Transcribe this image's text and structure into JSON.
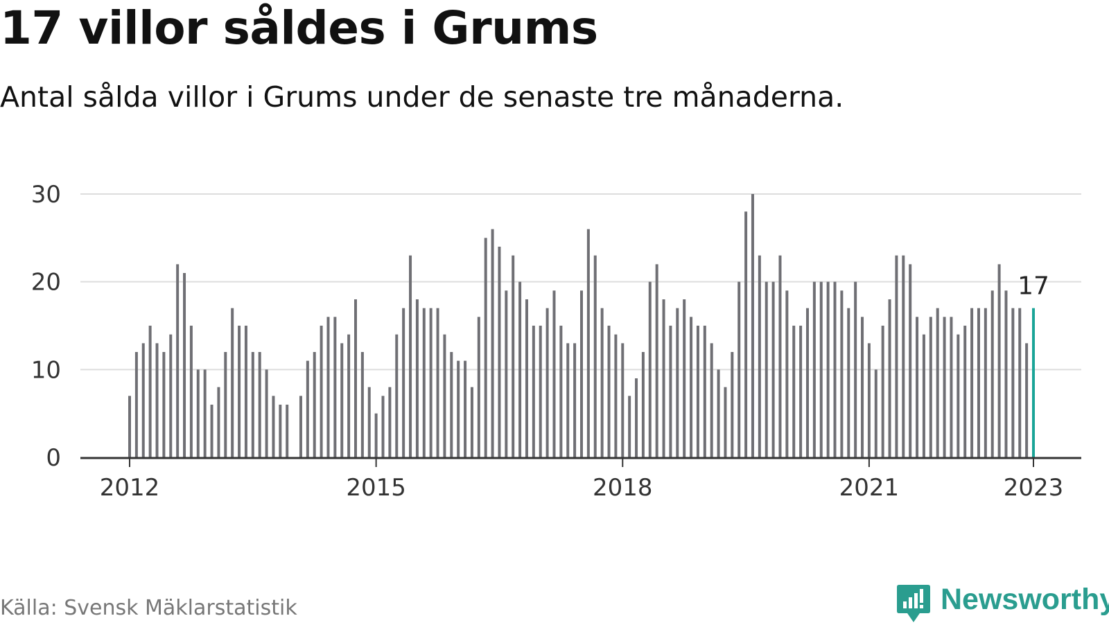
{
  "title": "17 villor såldes i Grums",
  "subtitle": "Antal sålda villor i Grums under de senaste tre månaderna.",
  "source": "Källa: Svensk Mäklarstatistik",
  "brand": {
    "name": "Newsworthy",
    "icon": "newsworthy-logo-icon"
  },
  "colors": {
    "bar": "#6f6f74",
    "highlight": "#1aa497",
    "grid": "#dddddd",
    "axis": "#333333",
    "brand": "#2a9d8f"
  },
  "chart_data": {
    "type": "bar",
    "title": "17 villor såldes i Grums",
    "xlabel": "",
    "ylabel": "",
    "ylim": [
      0,
      30
    ],
    "yticks": [
      0,
      10,
      20,
      30
    ],
    "xticks": [
      "2012",
      "2015",
      "2018",
      "2021",
      "2023"
    ],
    "grid": true,
    "start": "2012-01",
    "end": "2023-01",
    "values": [
      7,
      12,
      13,
      15,
      13,
      12,
      14,
      22,
      21,
      15,
      10,
      10,
      6,
      8,
      12,
      17,
      15,
      15,
      12,
      12,
      10,
      7,
      6,
      6,
      null,
      7,
      11,
      12,
      15,
      16,
      16,
      13,
      14,
      18,
      12,
      8,
      5,
      7,
      8,
      14,
      17,
      23,
      18,
      17,
      17,
      17,
      14,
      12,
      11,
      11,
      8,
      16,
      25,
      26,
      24,
      19,
      23,
      20,
      18,
      15,
      15,
      17,
      19,
      15,
      13,
      13,
      19,
      26,
      23,
      17,
      15,
      14,
      13,
      7,
      9,
      12,
      20,
      22,
      18,
      15,
      17,
      18,
      16,
      15,
      15,
      13,
      10,
      8,
      12,
      20,
      28,
      30,
      23,
      20,
      20,
      23,
      19,
      15,
      15,
      17,
      20,
      20,
      20,
      20,
      19,
      17,
      20,
      16,
      13,
      10,
      15,
      18,
      23,
      23,
      22,
      16,
      14,
      16,
      17,
      16,
      16,
      14,
      15,
      17,
      17,
      17,
      19,
      22,
      19,
      17,
      17,
      13,
      17
    ],
    "highlight": {
      "x": "2023-01",
      "value": 17,
      "label": "17"
    }
  }
}
